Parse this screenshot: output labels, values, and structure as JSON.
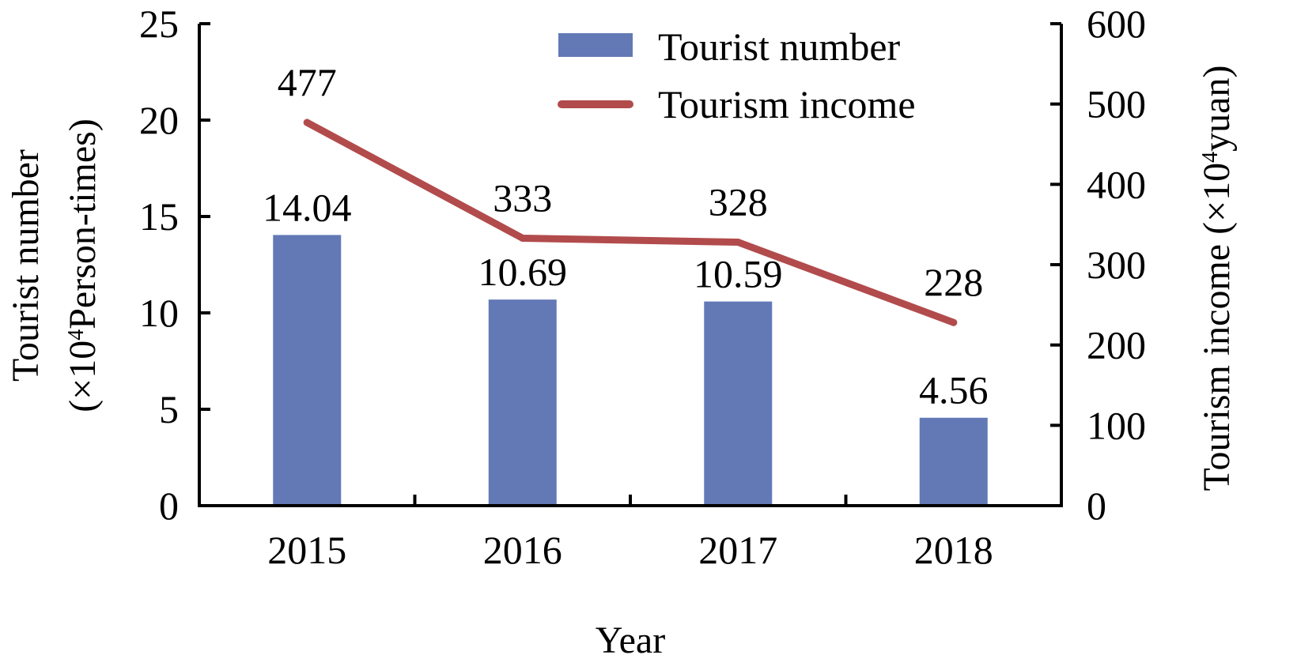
{
  "chart_data": {
    "type": "bar",
    "categories": [
      "2015",
      "2016",
      "2017",
      "2018"
    ],
    "series": [
      {
        "name": "Tourist number",
        "type": "bar",
        "axis": "left",
        "color": "#6379b6",
        "values": [
          14.04,
          10.69,
          10.59,
          4.56
        ],
        "labels": [
          "14.04",
          "10.69",
          "10.59",
          "4.56"
        ]
      },
      {
        "name": "Tourism income",
        "type": "line",
        "axis": "right",
        "color": "#b24b4c",
        "values": [
          477,
          333,
          328,
          228
        ],
        "labels": [
          "477",
          "333",
          "328",
          "228"
        ]
      }
    ],
    "xlabel": "Year",
    "ylabel_left": {
      "line1": "Tourist number",
      "line2_pre": "(×10",
      "line2_sup": "4",
      "line2_post": "Person-times)"
    },
    "ylabel_right": {
      "pre": "Tourism income (×10",
      "sup": "4",
      "post": "yuan)"
    },
    "y_left": {
      "lim": [
        0,
        25
      ],
      "ticks": [
        "0",
        "5",
        "10",
        "15",
        "20",
        "25"
      ]
    },
    "y_right": {
      "lim": [
        0,
        600
      ],
      "ticks": [
        "0",
        "100",
        "200",
        "300",
        "400",
        "500",
        "600"
      ]
    },
    "grid": false,
    "legend_position": "top-right"
  }
}
